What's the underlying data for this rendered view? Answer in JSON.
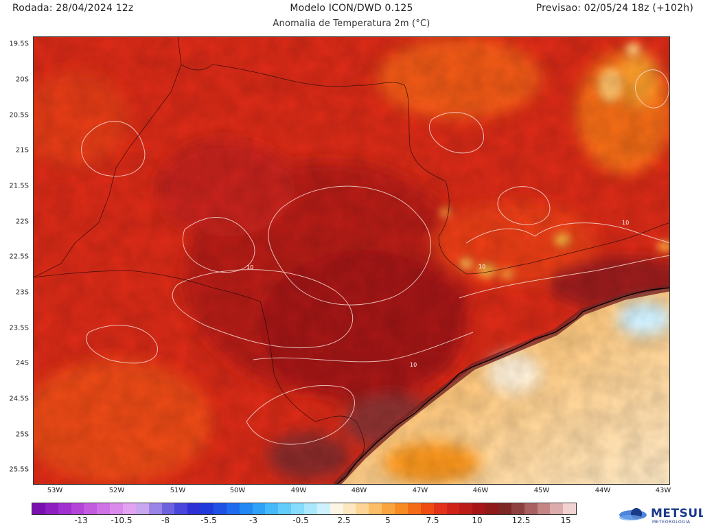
{
  "header": {
    "run": "Rodada: 28/04/2024 12z",
    "model": "Modelo ICON/DWD 0.125",
    "subtitle": "Anomalia de Temperatura 2m (°C)",
    "forecast": "Previsao: 02/05/24 18z (+102h)"
  },
  "map": {
    "lat_labels": [
      "19.5S",
      "20S",
      "20.5S",
      "21S",
      "21.5S",
      "22S",
      "22.5S",
      "23S",
      "23.5S",
      "24S",
      "24.5S",
      "25S",
      "25.5S"
    ],
    "lon_labels": [
      "53W",
      "52W",
      "51W",
      "50W",
      "49W",
      "48W",
      "47W",
      "46W",
      "45W",
      "44W",
      "43W"
    ],
    "contour_labels": [
      "10",
      "10",
      "10",
      "10"
    ]
  },
  "colorbar": {
    "labels": [
      "-13",
      "-10.5",
      "-8",
      "-5.5",
      "-3",
      "-0.5",
      "2.5",
      "5",
      "7.5",
      "10",
      "12.5",
      "15"
    ],
    "colors": [
      "#7a0fb0",
      "#8f1ec1",
      "#a22fcf",
      "#b443d8",
      "#c35be0",
      "#cf72e6",
      "#d98aeb",
      "#e2a3f0",
      "#c9a7f0",
      "#9b84e8",
      "#6f62e0",
      "#4a45dc",
      "#2f2fd6",
      "#1f39dc",
      "#1d52e4",
      "#1e6cee",
      "#2288f4",
      "#2fa2f7",
      "#45b9fa",
      "#62ccfb",
      "#86dcfc",
      "#aae8fd",
      "#cdf2fe",
      "#fdf5e4",
      "#fde7c1",
      "#fcd496",
      "#fbbd66",
      "#f9a43e",
      "#f78a22",
      "#f46b17",
      "#ee4c12",
      "#e2321a",
      "#cf2219",
      "#bb1c18",
      "#a61616",
      "#8f1a1a",
      "#7d2626",
      "#8e3f3f",
      "#a86060",
      "#c48585",
      "#dcacac",
      "#f0d2d2"
    ]
  },
  "logo": {
    "name": "METSUL",
    "tagline": "METEOROLOGIA"
  }
}
